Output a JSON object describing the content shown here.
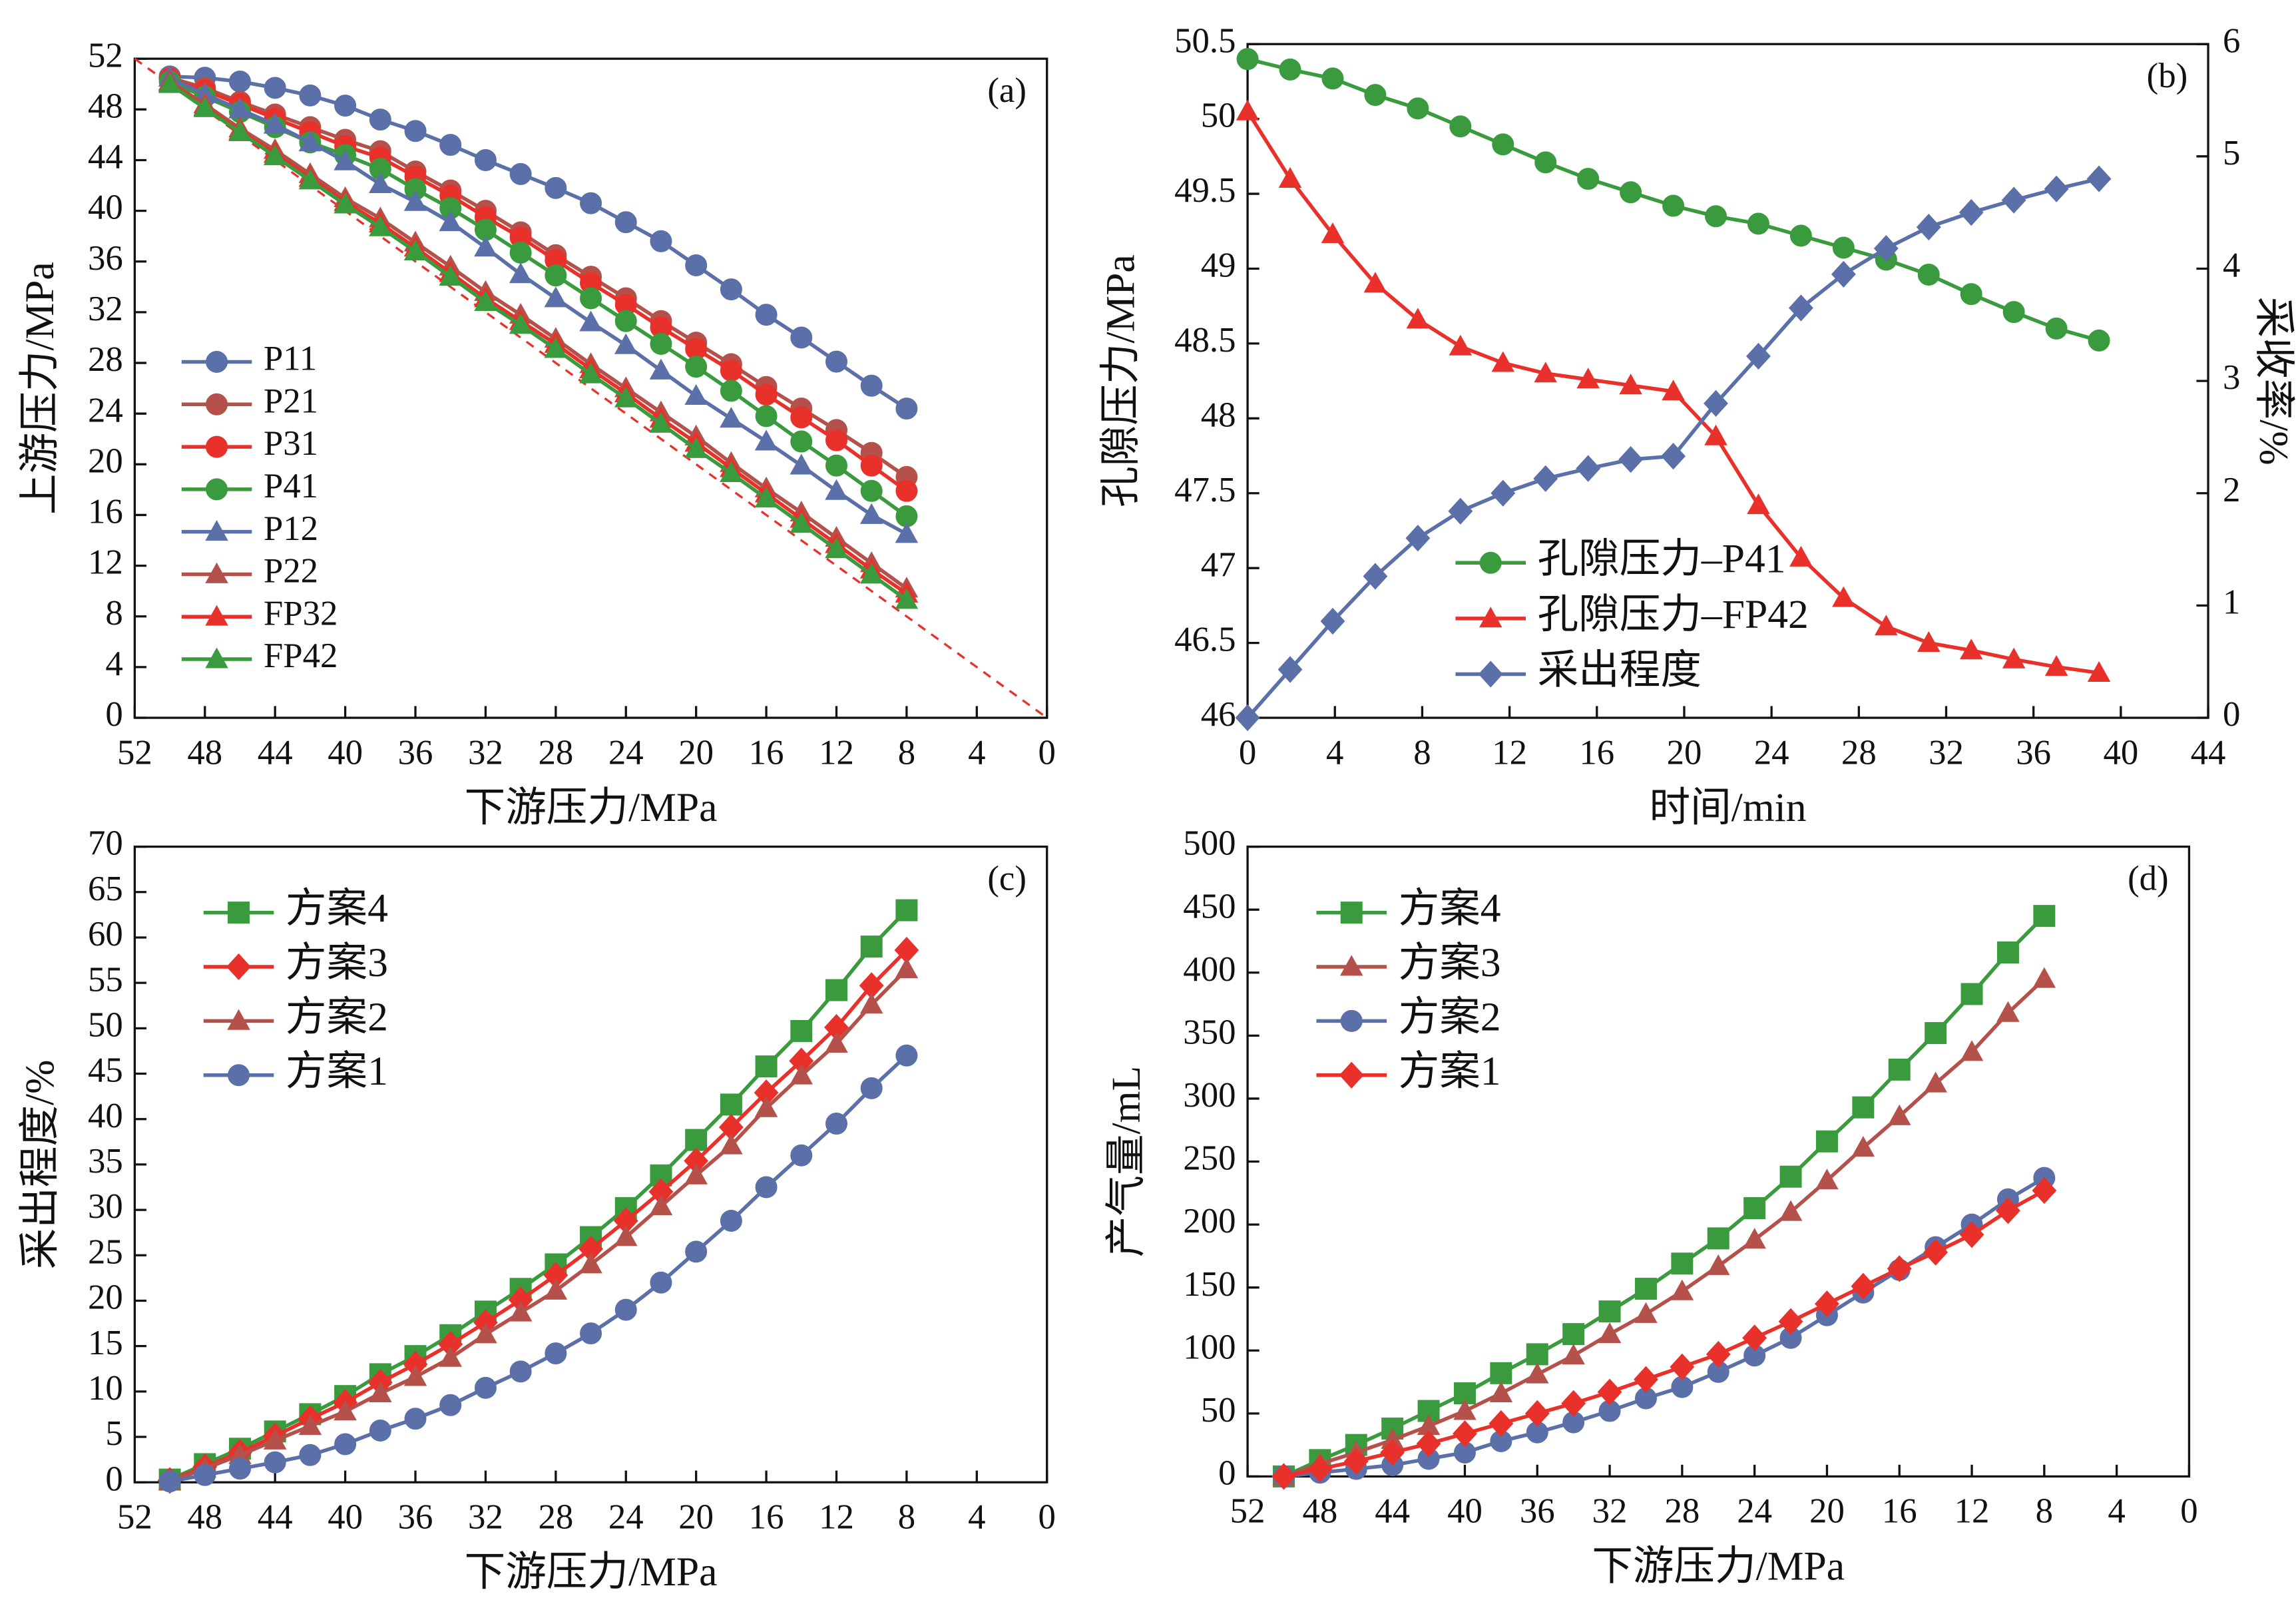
{
  "chart_data": [
    {
      "type": "line",
      "annotation": "(a)",
      "xlabel": "下游压力/MPa",
      "ylabel": "上游压力/MPa",
      "xlim": [
        52,
        0
      ],
      "xticks": [
        52,
        48,
        44,
        40,
        36,
        32,
        28,
        24,
        20,
        16,
        12,
        8,
        4,
        0
      ],
      "ylim": [
        0,
        52
      ],
      "yticks": [
        0,
        4,
        8,
        12,
        16,
        20,
        24,
        28,
        32,
        36,
        40,
        44,
        48,
        52
      ],
      "legend": "center left",
      "reference_line": {
        "color": "#e8312a",
        "dashed": true
      },
      "x": [
        50,
        48,
        46,
        44,
        42,
        40,
        38,
        36,
        34,
        32,
        30,
        28,
        26,
        24,
        22,
        20,
        18,
        16,
        14,
        12,
        10,
        8
      ],
      "series": [
        {
          "name": "P11",
          "color": "#5b6fa8",
          "marker": "circle",
          "values": [
            50.6,
            50.5,
            50.2,
            49.7,
            49.1,
            48.3,
            47.2,
            46.3,
            45.2,
            44,
            42.9,
            41.8,
            40.6,
            39.1,
            37.6,
            35.7,
            33.8,
            31.8,
            30,
            28.1,
            26.2,
            24.4
          ]
        },
        {
          "name": "P21",
          "color": "#b4514b",
          "marker": "circle",
          "values": [
            50.5,
            49.7,
            48.6,
            47.6,
            46.6,
            45.6,
            44.7,
            43.1,
            41.6,
            40,
            38.3,
            36.5,
            34.8,
            33.1,
            31.3,
            29.6,
            27.9,
            26.1,
            24.4,
            22.7,
            20.9,
            19
          ]
        },
        {
          "name": "P31",
          "color": "#e8312a",
          "marker": "circle",
          "values": [
            50.4,
            49.5,
            48.4,
            47.3,
            46.2,
            45.1,
            44.2,
            42.7,
            41.2,
            39.5,
            37.9,
            36.1,
            34.3,
            32.6,
            30.8,
            29.1,
            27.4,
            25.5,
            23.7,
            21.9,
            19.9,
            17.9
          ]
        },
        {
          "name": "P41",
          "color": "#3a9a3e",
          "marker": "circle",
          "values": [
            50.2,
            49,
            47.8,
            46.6,
            45.4,
            44.4,
            43.3,
            41.7,
            40.2,
            38.5,
            36.7,
            34.9,
            33.1,
            31.3,
            29.5,
            27.7,
            25.8,
            23.8,
            21.8,
            19.9,
            17.9,
            15.9
          ]
        },
        {
          "name": "P12",
          "color": "#5b6fa8",
          "marker": "triangle",
          "values": [
            50.5,
            49.2,
            48,
            46.8,
            45.4,
            43.9,
            42.1,
            40.7,
            39.1,
            37.1,
            35,
            33.1,
            31.2,
            29.4,
            27.4,
            25.4,
            23.6,
            21.8,
            19.9,
            17.9,
            16,
            14.5
          ]
        },
        {
          "name": "P22",
          "color": "#b4514b",
          "marker": "triangle",
          "values": [
            50.2,
            48.4,
            46.5,
            44.8,
            42.9,
            41,
            39.4,
            37.5,
            35.6,
            33.6,
            31.8,
            29.9,
            27.9,
            26,
            24.1,
            22.2,
            20.1,
            18.1,
            16.2,
            14.2,
            12.2,
            10.2
          ]
        },
        {
          "name": "FP32",
          "color": "#e8312a",
          "marker": "triangle",
          "values": [
            50.1,
            48.2,
            46.3,
            44.5,
            42.6,
            40.7,
            39,
            37.1,
            35.1,
            33.1,
            31.3,
            29.5,
            27.5,
            25.6,
            23.6,
            21.7,
            19.7,
            17.7,
            15.7,
            13.7,
            11.7,
            9.8
          ]
        },
        {
          "name": "FP42",
          "color": "#3a9a3e",
          "marker": "triangle",
          "values": [
            50,
            48.1,
            46.2,
            44.3,
            42.4,
            40.5,
            38.7,
            36.8,
            34.8,
            32.8,
            31,
            29.1,
            27.1,
            25.2,
            23.2,
            21.2,
            19.3,
            17.3,
            15.3,
            13.3,
            11.3,
            9.3
          ]
        }
      ]
    },
    {
      "type": "line",
      "annotation": "(b)",
      "xlabel": "时间/min",
      "ylabel": "孔隙压力/MPa",
      "y2label": "采收率/%",
      "xlim": [
        0,
        44
      ],
      "xticks": [
        0,
        4,
        8,
        12,
        16,
        20,
        24,
        28,
        32,
        36,
        40,
        44
      ],
      "ylim": [
        46,
        50.5
      ],
      "yticks": [
        46,
        46.5,
        47,
        47.5,
        48,
        48.5,
        49,
        49.5,
        50,
        50.5
      ],
      "y2lim": [
        0,
        6
      ],
      "y2ticks": [
        0,
        1,
        2,
        3,
        4,
        5,
        6
      ],
      "legend": "lower center",
      "x": [
        0,
        1.95,
        3.9,
        5.85,
        7.8,
        9.75,
        11.7,
        13.65,
        15.6,
        17.55,
        19.5,
        21.45,
        23.4,
        25.35,
        27.3,
        29.25,
        31.2,
        33.15,
        35.1,
        37.05,
        39
      ],
      "series": [
        {
          "name": "孔隙压力–P41",
          "color": "#3a9a3e",
          "marker": "circle",
          "values": [
            50.4,
            50.33,
            50.27,
            50.16,
            50.07,
            49.95,
            49.83,
            49.71,
            49.6,
            49.51,
            49.42,
            49.35,
            49.3,
            49.22,
            49.14,
            49.06,
            48.96,
            48.83,
            48.71,
            48.6,
            48.52
          ]
        },
        {
          "name": "孔隙压力–FP42",
          "color": "#e8312a",
          "marker": "triangle",
          "values": [
            50.05,
            49.6,
            49.23,
            48.9,
            48.66,
            48.48,
            48.37,
            48.3,
            48.26,
            48.22,
            48.18,
            47.88,
            47.42,
            47.07,
            46.8,
            46.61,
            46.5,
            46.45,
            46.39,
            46.34,
            46.3
          ]
        },
        {
          "name": "采出程度",
          "color": "#5b6fa8",
          "marker": "diamond",
          "axis": "y2",
          "values": [
            0,
            0.43,
            0.86,
            1.26,
            1.6,
            1.84,
            2,
            2.13,
            2.22,
            2.3,
            2.33,
            2.8,
            3.22,
            3.65,
            3.95,
            4.18,
            4.37,
            4.5,
            4.61,
            4.71,
            4.8
          ]
        }
      ]
    },
    {
      "type": "line",
      "annotation": "(c)",
      "xlabel": "下游压力/MPa",
      "ylabel": "采出程度/%",
      "xlim": [
        52,
        0
      ],
      "xticks": [
        52,
        48,
        44,
        40,
        36,
        32,
        28,
        24,
        20,
        16,
        12,
        8,
        4,
        0
      ],
      "ylim": [
        0,
        70
      ],
      "yticks": [
        0,
        5,
        10,
        15,
        20,
        25,
        30,
        35,
        40,
        45,
        50,
        55,
        60,
        65,
        70
      ],
      "legend": "upper left",
      "x": [
        50,
        48,
        46,
        44,
        42,
        40,
        38,
        36,
        34,
        32,
        30,
        28,
        26,
        24,
        22,
        20,
        18,
        16,
        14,
        12,
        10,
        8
      ],
      "series": [
        {
          "name": "方案4",
          "color": "#3a9a3e",
          "marker": "square",
          "values": [
            0.3,
            2,
            3.7,
            5.6,
            7.5,
            9.5,
            11.9,
            13.9,
            16.2,
            18.8,
            21.3,
            24,
            27,
            30.2,
            33.8,
            37.7,
            41.6,
            45.8,
            49.7,
            54.2,
            59,
            63
          ]
        },
        {
          "name": "方案3",
          "color": "#e8312a",
          "marker": "diamond",
          "values": [
            0.2,
            1.7,
            3.3,
            5.1,
            7,
            8.8,
            11,
            13,
            15.2,
            17.6,
            20.1,
            22.8,
            25.7,
            28.8,
            32,
            35.4,
            39.1,
            42.9,
            46.4,
            50.1,
            54.7,
            58.6
          ]
        },
        {
          "name": "方案2",
          "color": "#b4514b",
          "marker": "triangle",
          "values": [
            0.1,
            1.5,
            3,
            4.6,
            6.2,
            7.8,
            9.8,
            11.6,
            13.7,
            16.3,
            18.7,
            21.1,
            24,
            27,
            30.4,
            33.8,
            37.1,
            41.2,
            44.8,
            48.3,
            52.6,
            56.5
          ]
        },
        {
          "name": "方案1",
          "color": "#5b6fa8",
          "marker": "circle",
          "values": [
            0.1,
            0.8,
            1.5,
            2.2,
            3,
            4.2,
            5.7,
            7,
            8.5,
            10.4,
            12.2,
            14.2,
            16.4,
            19,
            22,
            25.4,
            28.8,
            32.5,
            36,
            39.5,
            43.4,
            47
          ]
        }
      ]
    },
    {
      "type": "line",
      "annotation": "(d)",
      "xlabel": "下游压力/MPa",
      "ylabel": "产气量/mL",
      "xlim": [
        52,
        0
      ],
      "xticks": [
        52,
        48,
        44,
        40,
        36,
        32,
        28,
        24,
        20,
        16,
        12,
        8,
        4,
        0
      ],
      "ylim": [
        0,
        500
      ],
      "yticks": [
        0,
        50,
        100,
        150,
        200,
        250,
        300,
        350,
        400,
        450,
        500
      ],
      "legend": "upper left",
      "x": [
        50,
        48,
        46,
        44,
        42,
        40,
        38,
        36,
        34,
        32,
        30,
        28,
        26,
        24,
        22,
        20,
        18,
        16,
        14,
        12,
        10,
        8
      ],
      "series": [
        {
          "name": "方案4",
          "color": "#3a9a3e",
          "marker": "square",
          "values": [
            0,
            13,
            25,
            38,
            52,
            66,
            82,
            97,
            113,
            131,
            149,
            169,
            189,
            213,
            238,
            266,
            293,
            323,
            352,
            383,
            416,
            445
          ]
        },
        {
          "name": "方案3",
          "color": "#b4514b",
          "marker": "triangle",
          "values": [
            0,
            10,
            19,
            29,
            40,
            52,
            66,
            81,
            96,
            113,
            129,
            147,
            167,
            188,
            210,
            235,
            261,
            286,
            312,
            337,
            368,
            395
          ]
        },
        {
          "name": "方案2",
          "color": "#5b6fa8",
          "marker": "circle",
          "values": [
            0,
            3,
            6,
            9,
            14,
            19,
            28,
            35,
            43,
            52,
            62,
            71,
            83,
            96,
            110,
            128,
            146,
            164,
            182,
            200,
            220,
            237
          ]
        },
        {
          "name": "方案1",
          "color": "#e8312a",
          "marker": "diamond",
          "values": [
            0,
            6,
            12,
            19,
            26,
            34,
            42,
            50,
            58,
            67,
            77,
            87,
            97,
            110,
            123,
            137,
            151,
            165,
            178,
            192,
            211,
            227
          ]
        }
      ]
    }
  ]
}
